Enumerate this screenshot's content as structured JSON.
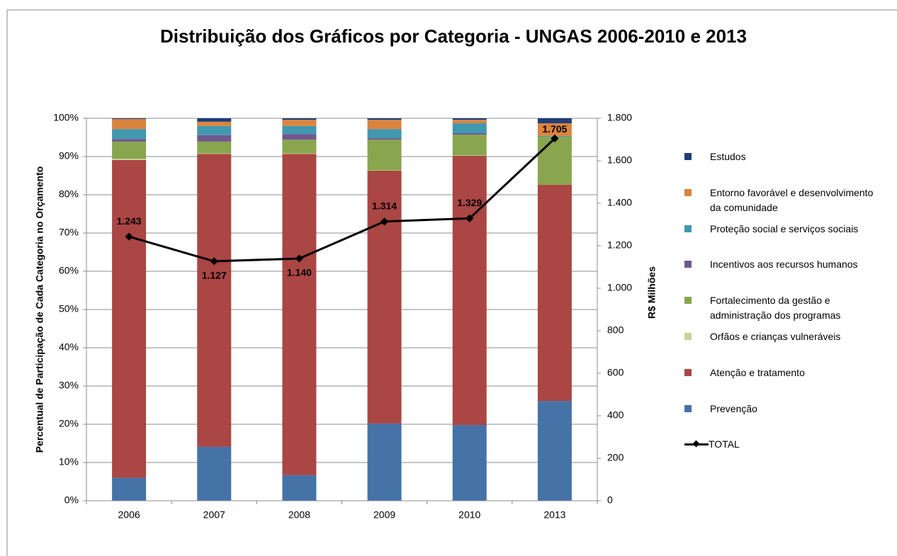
{
  "chart_data": {
    "type": "bar",
    "stacked": true,
    "title": "Distribuição dos Gráficos por Categoria - UNGAS 2006-2010 e 2013",
    "y_label": "Percentual de Participação de Cada Categoria no Orçamento",
    "y2_label": "R$ Milhões",
    "categories": [
      "2006",
      "2007",
      "2008",
      "2009",
      "2010",
      "2013"
    ],
    "series": [
      {
        "name": "Prevenção",
        "color": "#4572a7",
        "values": [
          6.0,
          14.1,
          6.7,
          20.2,
          19.8,
          26.1
        ]
      },
      {
        "name": "Atenção e tratamento",
        "color": "#aa4643",
        "values": [
          83.1,
          76.6,
          84.0,
          66.1,
          70.4,
          56.5
        ]
      },
      {
        "name": "Orfãos e crianças vulneráveis",
        "color": "#c3d69b",
        "values": [
          0.3,
          0.1,
          0.1,
          0.1,
          0.1,
          0
        ]
      },
      {
        "name": "Fortalecimento da gestão e administração dos programas",
        "color": "#89a54e",
        "values": [
          4.5,
          3.1,
          3.6,
          8.0,
          5.4,
          12.6
        ]
      },
      {
        "name": "Incentivos aos recursos humanos",
        "color": "#71588f",
        "values": [
          0.7,
          1.7,
          1.5,
          0.4,
          0.4,
          0
        ]
      },
      {
        "name": "Proteção social e serviços sociais",
        "color": "#4198af",
        "values": [
          2.6,
          2.4,
          2.1,
          2.4,
          2.6,
          0.2
        ]
      },
      {
        "name": "Entorno favorável e desenvolvimento da comunidade",
        "color": "#db843d",
        "values": [
          2.6,
          1.1,
          1.6,
          2.4,
          0.9,
          3.3
        ]
      },
      {
        "name": "Estudos",
        "color": "#1f3d7a",
        "values": [
          0.2,
          0.9,
          0.4,
          0.4,
          0.4,
          1.3
        ]
      },
      {
        "name": "TOTAL",
        "type": "line",
        "axis": "y2",
        "color": "#000000",
        "values": [
          1243,
          1127,
          1140,
          1314,
          1329,
          1705
        ],
        "value_labels": [
          "1.243",
          "1.127",
          "1.140",
          "1.314",
          "1.329",
          "1.705"
        ]
      }
    ],
    "ylim": [
      0,
      100
    ],
    "yticks": [
      {
        "value": 0,
        "label": "0%"
      },
      {
        "value": 10,
        "label": "10%"
      },
      {
        "value": 20,
        "label": "20%"
      },
      {
        "value": 30,
        "label": "30%"
      },
      {
        "value": 40,
        "label": "40%"
      },
      {
        "value": 50,
        "label": "50%"
      },
      {
        "value": 60,
        "label": "60%"
      },
      {
        "value": 70,
        "label": "70%"
      },
      {
        "value": 80,
        "label": "80%"
      },
      {
        "value": 90,
        "label": "90%"
      },
      {
        "value": 100,
        "label": "100%"
      }
    ],
    "y2lim": [
      0,
      1800
    ],
    "y2ticks": [
      0,
      200,
      400,
      600,
      800,
      {
        "value": 1000,
        "label": "1.000"
      },
      {
        "value": 1200,
        "label": "1.200"
      },
      {
        "value": 1400,
        "label": "1.400"
      },
      {
        "value": 1600,
        "label": "1.600"
      },
      {
        "value": 1800,
        "label": "1.800"
      }
    ],
    "grid": true,
    "legend": "right"
  }
}
